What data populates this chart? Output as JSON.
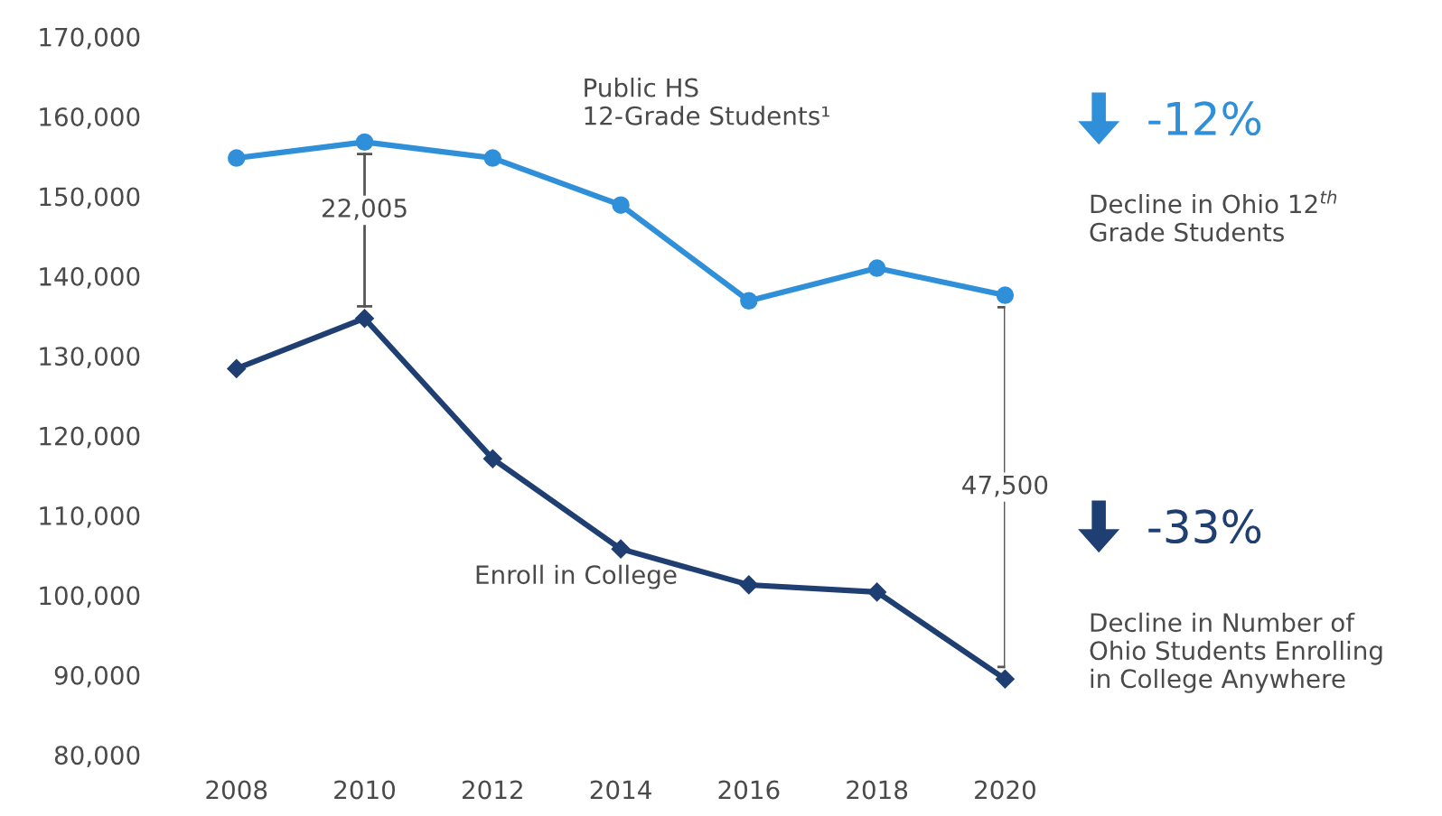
{
  "chart_data": {
    "type": "line",
    "x": [
      2008,
      2010,
      2012,
      2014,
      2016,
      2018,
      2020
    ],
    "series": [
      {
        "name": "Public HS\n12-Grade Students¹",
        "color": "#2f8fd8",
        "marker": "circle",
        "values": [
          154800,
          156800,
          154800,
          148900,
          136900,
          141000,
          137600
        ]
      },
      {
        "name": "Enroll in College",
        "color": "#1f3f73",
        "marker": "diamond",
        "values": [
          128400,
          134700,
          117100,
          105800,
          101300,
          100400,
          89500
        ]
      }
    ],
    "xlim": [
      2008,
      2020
    ],
    "xticks": [
      2008,
      2010,
      2012,
      2014,
      2016,
      2018,
      2020
    ],
    "ylim": [
      80000,
      170000
    ],
    "yticks": [
      {
        "value": 80000,
        "label": "80,000"
      },
      {
        "value": 90000,
        "label": "90,000"
      },
      {
        "value": 100000,
        "label": "100,000"
      },
      {
        "value": 110000,
        "label": "110,000"
      },
      {
        "value": 120000,
        "label": "120,000"
      },
      {
        "value": 130000,
        "label": "130,000"
      },
      {
        "value": 140000,
        "label": "140,000"
      },
      {
        "value": 150000,
        "label": "150,000"
      },
      {
        "value": 160000,
        "label": "160,000"
      },
      {
        "value": 170000,
        "label": "170,000"
      }
    ],
    "annotations": [
      "22,005",
      "47,500",
      "-12%",
      "Decline in Ohio 12$^{th}$\nGrade Students",
      "-33%",
      "Decline in Number of\nOhio Students Enrolling\nin College Anywhere"
    ],
    "grid": false,
    "legend": false,
    "line_style": "solid"
  }
}
